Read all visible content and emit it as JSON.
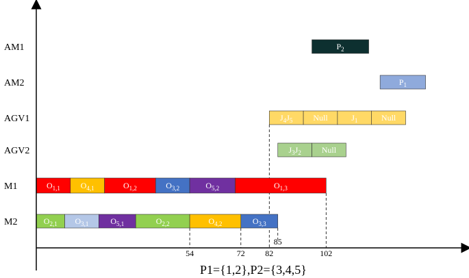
{
  "chart_data": {
    "type": "gantt",
    "rows": [
      "AM1",
      "AM2",
      "AGV1",
      "AGV2",
      "M1",
      "M2"
    ],
    "xlabel": "P1={1,2},P2={3,4,5}",
    "tick_values": [
      54,
      72,
      82,
      85,
      102
    ],
    "x_range": [
      0,
      120
    ],
    "colors": {
      "red": "#ff0000",
      "orange": "#ffc000",
      "blue": "#4472c4",
      "lightblue": "#b4c7e7",
      "purple": "#7030a0",
      "green": "#92d050",
      "yellow": "#ffd966",
      "sage": "#a9d18e",
      "dark": "#0d3030",
      "periwinkle": "#8faadc"
    },
    "tasks": [
      {
        "row": "M1",
        "label": "O",
        "sub": "1,1",
        "start": 0,
        "end": 12,
        "color": "red"
      },
      {
        "row": "M1",
        "label": "O",
        "sub": "4,1",
        "start": 12,
        "end": 24,
        "color": "orange"
      },
      {
        "row": "M1",
        "label": "O",
        "sub": "1,2",
        "start": 24,
        "end": 42,
        "color": "red"
      },
      {
        "row": "M1",
        "label": "O",
        "sub": "3,2",
        "start": 42,
        "end": 54,
        "color": "blue"
      },
      {
        "row": "M1",
        "label": "O",
        "sub": "5,2",
        "start": 54,
        "end": 70,
        "color": "purple"
      },
      {
        "row": "M1",
        "label": "O",
        "sub": "1,3",
        "start": 70,
        "end": 102,
        "color": "red"
      },
      {
        "row": "M2",
        "label": "O",
        "sub": "2,1",
        "start": 0,
        "end": 10,
        "color": "green"
      },
      {
        "row": "M2",
        "label": "O",
        "sub": "3,1",
        "start": 10,
        "end": 22,
        "color": "lightblue"
      },
      {
        "row": "M2",
        "label": "O",
        "sub": "5,1",
        "start": 22,
        "end": 35,
        "color": "purple"
      },
      {
        "row": "M2",
        "label": "O",
        "sub": "2,2",
        "start": 35,
        "end": 54,
        "color": "green"
      },
      {
        "row": "M2",
        "label": "O",
        "sub": "4,2",
        "start": 54,
        "end": 72,
        "color": "orange"
      },
      {
        "row": "M2",
        "label": "O",
        "sub": "3,3",
        "start": 72,
        "end": 85,
        "color": "blue"
      },
      {
        "row": "AGV1",
        "label": "J",
        "sub": "4",
        "label2": "J",
        "sub2": "5",
        "start": 82,
        "end": 94,
        "color": "yellow"
      },
      {
        "row": "AGV1",
        "label": "Null",
        "sub": "",
        "start": 94,
        "end": 106,
        "color": "yellow"
      },
      {
        "row": "AGV1",
        "label": "J",
        "sub": "1",
        "start": 106,
        "end": 118,
        "color": "yellow"
      },
      {
        "row": "AGV1",
        "label": "Null",
        "sub": "",
        "start": 118,
        "end": 130,
        "color": "yellow"
      },
      {
        "row": "AGV2",
        "label": "J",
        "sub": "3",
        "label2": "J",
        "sub2": "2",
        "start": 85,
        "end": 97,
        "color": "sage"
      },
      {
        "row": "AGV2",
        "label": "Null",
        "sub": "",
        "start": 97,
        "end": 109,
        "color": "sage"
      },
      {
        "row": "AM1",
        "label": "P",
        "sub": "2",
        "start": 97,
        "end": 117,
        "color": "dark"
      },
      {
        "row": "AM2",
        "label": "P",
        "sub": "1",
        "start": 121,
        "end": 137,
        "color": "periwinkle"
      }
    ]
  }
}
